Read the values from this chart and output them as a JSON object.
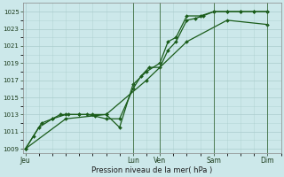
{
  "bg_color": "#cce8ea",
  "grid_color": "#aacccc",
  "line_color": "#1a5c1a",
  "xlabel": "Pression niveau de la mer( hPa )",
  "ylim": [
    1008.5,
    1026.0
  ],
  "yticks": [
    1009,
    1011,
    1013,
    1015,
    1017,
    1019,
    1021,
    1023,
    1025
  ],
  "day_labels": [
    "Jeu",
    "Lun",
    "Ven",
    "Sam",
    "Dim"
  ],
  "day_positions": [
    0,
    4,
    5,
    7,
    9
  ],
  "xlim": [
    -0.1,
    9.5
  ],
  "series1_x": [
    0,
    0.3,
    0.6,
    1.0,
    1.3,
    1.6,
    2.0,
    2.3,
    2.6,
    3.0,
    3.5,
    4.0,
    4.3,
    4.6,
    5.0,
    5.3,
    5.6,
    6.0,
    6.3,
    6.6,
    7.0,
    7.5,
    8.0,
    8.5,
    9.0
  ],
  "series1_y": [
    1009,
    1010.5,
    1012,
    1012.5,
    1013,
    1013,
    1013,
    1013,
    1012.8,
    1012.5,
    1012.5,
    1016,
    1017.5,
    1018.5,
    1018.5,
    1020.5,
    1021.5,
    1024.0,
    1024.2,
    1024.5,
    1025,
    1025,
    1025,
    1025,
    1025
  ],
  "series2_x": [
    0,
    0.5,
    1.0,
    1.5,
    2.0,
    2.5,
    3.0,
    3.5,
    4.0,
    4.5,
    5.0,
    5.3,
    5.6,
    6.0,
    6.5,
    7.0,
    7.5,
    8.0,
    8.5,
    9.0
  ],
  "series2_y": [
    1009,
    1011.5,
    1012.5,
    1013,
    1013,
    1013,
    1013,
    1011.5,
    1016.5,
    1018,
    1019,
    1021.5,
    1022,
    1024.5,
    1024.5,
    1025,
    1025,
    1025,
    1025,
    1025
  ],
  "series3_x": [
    0,
    1.5,
    3.0,
    4.5,
    6.0,
    7.5,
    9.0
  ],
  "series3_y": [
    1009,
    1012.5,
    1013,
    1017,
    1021.5,
    1024,
    1023.5
  ],
  "vlines_x": [
    4,
    5,
    7,
    9
  ],
  "vline_color": "#336633",
  "marker": "D",
  "markersize": 2.0,
  "linewidth": 0.9
}
